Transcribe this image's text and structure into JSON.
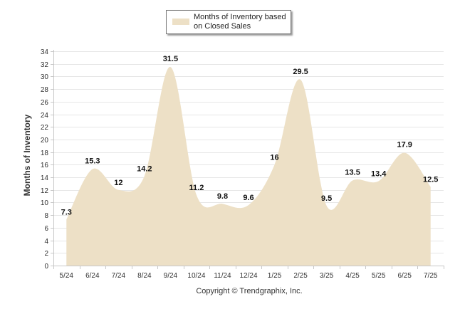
{
  "chart_data": {
    "type": "area",
    "categories": [
      "5/24",
      "6/24",
      "7/24",
      "8/24",
      "9/24",
      "10/24",
      "11/24",
      "12/24",
      "1/25",
      "2/25",
      "3/25",
      "4/25",
      "5/25",
      "6/25",
      "7/25"
    ],
    "series": [
      {
        "name": "Months of Inventory based on Closed Sales",
        "values": [
          7.3,
          15.3,
          12,
          14.2,
          31.5,
          11.2,
          9.8,
          9.6,
          16,
          29.5,
          9.5,
          13.5,
          13.4,
          17.9,
          12.5
        ]
      }
    ],
    "data_labels": [
      "7.3",
      "15.3",
      "12",
      "14.2",
      "31.5",
      "11.2",
      "9.8",
      "9.6",
      "16",
      "29.5",
      "9.5",
      "13.5",
      "13.4",
      "17.9",
      "12.5"
    ],
    "ylabel": "Months of Inventory",
    "ylim": [
      0,
      34
    ],
    "yticks": [
      "0",
      "2",
      "4",
      "6",
      "8",
      "10",
      "12",
      "14",
      "16",
      "18",
      "20",
      "22",
      "24",
      "26",
      "28",
      "30",
      "32",
      "34"
    ],
    "grid": true,
    "legend_position": "top-center",
    "colors": {
      "area_fill": "#ede0c6",
      "grid": "#e6e6e6",
      "axis": "#c8c8c8",
      "text": "#333333"
    }
  },
  "legend": {
    "label": "Months of Inventory based on Closed Sales"
  },
  "footer": {
    "copyright": "Copyright © Trendgraphix, Inc."
  }
}
